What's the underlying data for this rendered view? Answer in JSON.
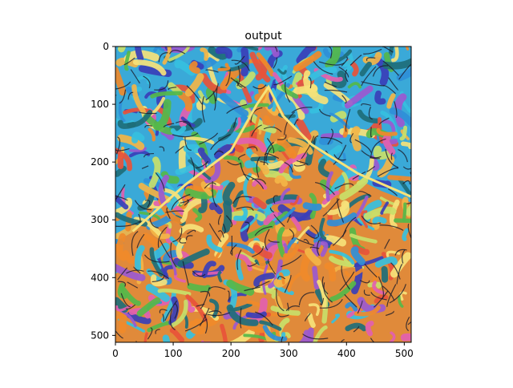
{
  "chart_data": {
    "type": "image",
    "title": "output",
    "xlabel": "",
    "ylabel": "",
    "xlim": [
      0,
      512
    ],
    "ylim": [
      512,
      0
    ],
    "x_ticks": [
      0,
      100,
      200,
      300,
      400,
      500
    ],
    "y_ticks": [
      0,
      100,
      200,
      300,
      400,
      500
    ],
    "x_tick_labels": [
      "0",
      "100",
      "200",
      "300",
      "400",
      "500"
    ],
    "y_tick_labels": [
      "0",
      "100",
      "200",
      "300",
      "400",
      "500"
    ],
    "image_content": "stylized painting of a mountain with dense multicolored brush strokes",
    "palette": [
      "#2f8fd8",
      "#36c0e0",
      "#f08a2a",
      "#f3b548",
      "#55b84a",
      "#e8523a",
      "#9b59d0",
      "#e25fb0",
      "#3a3fb8",
      "#f6e27a",
      "#1e6e7a",
      "#c8e06a"
    ]
  }
}
